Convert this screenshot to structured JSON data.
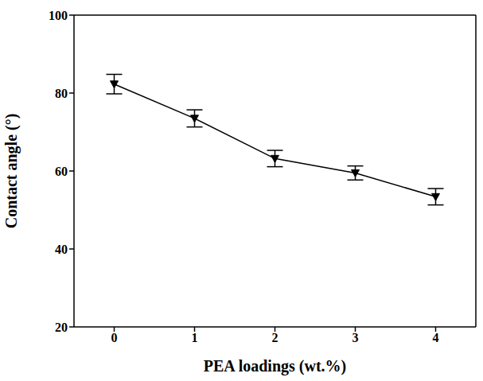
{
  "chart_data": {
    "type": "line",
    "x_label": "PEA loadings (wt.%)",
    "y_label": "Contact angle (°)",
    "x": [
      0,
      1,
      2,
      3,
      4
    ],
    "values": [
      82.3,
      73.5,
      63.2,
      59.5,
      53.4
    ],
    "errors": [
      2.5,
      2.2,
      2.1,
      1.8,
      2.1
    ],
    "xlim": [
      -0.5,
      4.5
    ],
    "xticks": [
      0,
      1,
      2,
      3,
      4
    ],
    "ylim": [
      20,
      100
    ],
    "yticks": [
      20,
      40,
      60,
      80,
      100
    ],
    "color": "#000000",
    "marker": "triangle_down",
    "line_style": "solid",
    "grid": false
  }
}
